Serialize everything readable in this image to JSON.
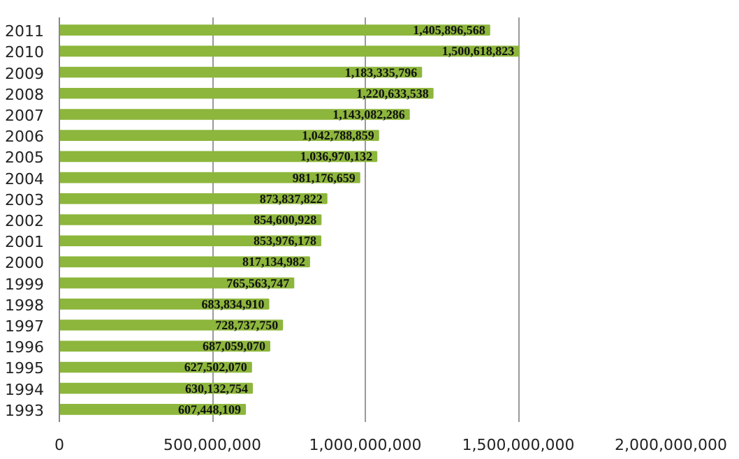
{
  "chart_data": {
    "type": "bar",
    "orientation": "horizontal",
    "categories": [
      "2011",
      "2010",
      "2009",
      "2008",
      "2007",
      "2006",
      "2005",
      "2004",
      "2003",
      "2002",
      "2001",
      "2000",
      "1999",
      "1998",
      "1997",
      "1996",
      "1995",
      "1994",
      "1993"
    ],
    "values": [
      1405896568,
      1500618823,
      1183335796,
      1220633538,
      1143082286,
      1042788859,
      1036970132,
      981176659,
      873837822,
      854600928,
      853976178,
      817134982,
      765563747,
      683834910,
      728737750,
      687059070,
      627502070,
      630132754,
      607448109
    ],
    "color": "#8db63c",
    "xlim": [
      0,
      2000000000
    ],
    "xticks": [
      {
        "value": 0,
        "label": "0"
      },
      {
        "value": 500000000,
        "label": "500,000,000"
      },
      {
        "value": 1000000000,
        "label": "1,000,000,000"
      },
      {
        "value": 1500000000,
        "label": "1,500,000,000"
      },
      {
        "value": 2000000000,
        "label": "2,000,000,000"
      }
    ],
    "value_labels": [
      "1,405,896,568",
      "1,500,618,823",
      "1,183,335,796",
      "1,220,633,538",
      "1,143,082,286",
      "1,042,788,859",
      "1,036,970,132",
      "981,176,659",
      "873,837,822",
      "854,600,928",
      "853,976,178",
      "817,134,982",
      "765,563,747",
      "683,834,910",
      "728,737,750",
      "687,059,070",
      "627,502,070",
      "630,132,754",
      "607,448,109"
    ],
    "grid": "x"
  }
}
